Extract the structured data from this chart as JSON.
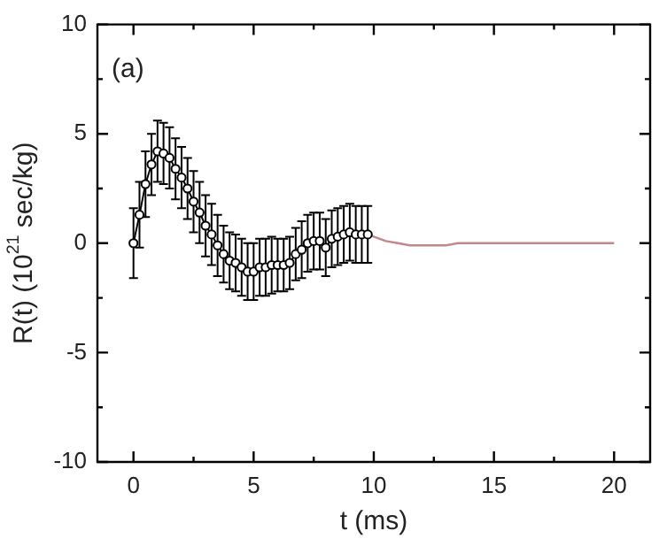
{
  "chart_data": {
    "type": "line",
    "xlabel": "t (ms)",
    "ylabel": "R(t) (10$^{21}$ sec/kg)",
    "annotations": [
      "(a)"
    ],
    "xlim": [
      -1.5,
      21.5
    ],
    "ylim": [
      -10,
      10
    ],
    "xticks": [
      0,
      {
        "value": 2.5,
        "label": null
      },
      5,
      {
        "value": 7.5,
        "label": null
      },
      10,
      {
        "value": 12.5,
        "label": null
      },
      15,
      {
        "value": 17.5,
        "label": null
      },
      20
    ],
    "yticks": [
      -10,
      {
        "value": -7.5,
        "label": null
      },
      -5,
      {
        "value": -2.5,
        "label": null
      },
      0,
      {
        "value": 2.5,
        "label": null
      },
      5,
      {
        "value": 7.5,
        "label": null
      },
      10
    ],
    "grid": false,
    "legend": false,
    "marker": "circle",
    "line_style": "solid",
    "series": [
      {
        "color": "#000000",
        "x": [
          0,
          0.25,
          0.5,
          0.75,
          1.0,
          1.25,
          1.5,
          1.75,
          2.0,
          2.25,
          2.5,
          2.75,
          3.0,
          3.25,
          3.5,
          3.75,
          4.0,
          4.25,
          4.5,
          4.75,
          5.0,
          5.25,
          5.5,
          5.75,
          6.0,
          6.25,
          6.5,
          6.75,
          7.0,
          7.25,
          7.5,
          7.75,
          8.0,
          8.25,
          8.5,
          8.75,
          9.0,
          9.25,
          9.5,
          9.75
        ],
        "values": [
          0,
          1.3,
          2.7,
          3.6,
          4.2,
          4.1,
          3.9,
          3.4,
          3.0,
          2.5,
          1.9,
          1.4,
          0.8,
          0.4,
          -0.1,
          -0.5,
          -0.8,
          -0.9,
          -1.1,
          -1.3,
          -1.3,
          -1.1,
          -1.1,
          -1.0,
          -1.0,
          -1.0,
          -0.9,
          -0.5,
          -0.3,
          0,
          0.1,
          0.1,
          -0.2,
          0.2,
          0.3,
          0.4,
          0.5,
          0.4,
          0.4,
          0.4
        ],
        "errors": [
          1.6,
          1.5,
          1.5,
          1.4,
          1.4,
          1.4,
          1.4,
          1.4,
          1.4,
          1.4,
          1.4,
          1.4,
          1.4,
          1.4,
          1.4,
          1.3,
          1.3,
          1.3,
          1.3,
          1.3,
          1.3,
          1.3,
          1.3,
          1.3,
          1.2,
          1.2,
          1.2,
          1.2,
          1.3,
          1.3,
          1.3,
          1.3,
          1.3,
          1.3,
          1.3,
          1.3,
          1.3,
          1.3,
          1.3,
          1.3
        ]
      },
      {
        "color": "#c08888",
        "marker": "none",
        "x": [
          9.75,
          10.5,
          11,
          11.5,
          12,
          12.5,
          13,
          13.5,
          14,
          15,
          16,
          17,
          18,
          19,
          20
        ],
        "values": [
          0.4,
          0.1,
          0,
          -0.1,
          -0.1,
          -0.1,
          -0.1,
          0,
          0,
          0,
          0,
          0,
          0,
          0,
          0
        ]
      }
    ]
  }
}
